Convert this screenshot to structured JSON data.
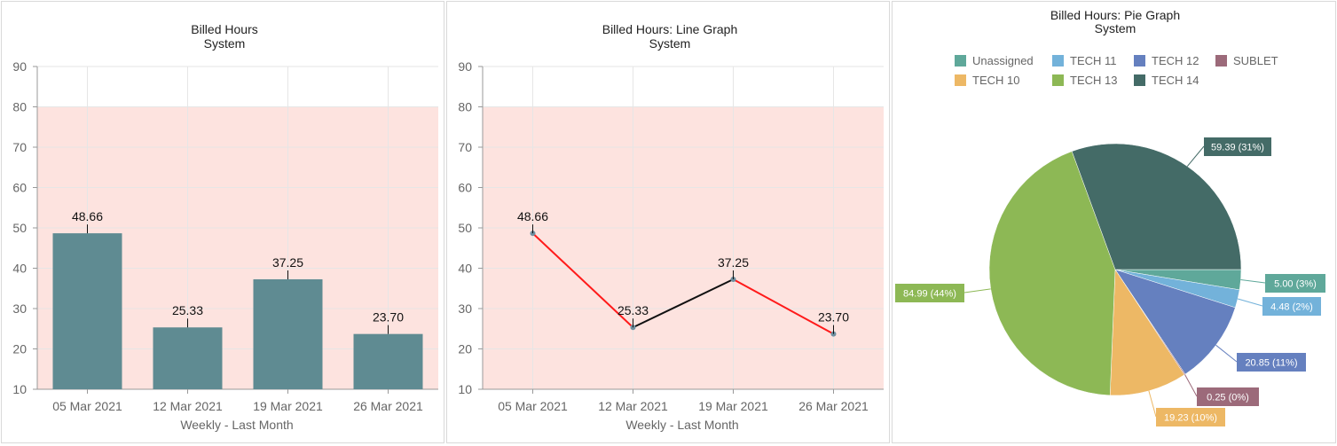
{
  "charts": [
    {
      "id": "bar",
      "type": "bar",
      "title": [
        "Billed Hours",
        "System"
      ],
      "categories": [
        "05 Mar 2021",
        "12 Mar 2021",
        "19 Mar 2021",
        "26 Mar 2021"
      ],
      "values": [
        48.66,
        25.33,
        37.25,
        23.7
      ],
      "value_labels": [
        "48.66",
        "25.33",
        "37.25",
        "23.70"
      ],
      "xlabel": "Weekly - Last Month",
      "ylim": [
        10,
        90
      ],
      "yticks": [
        10,
        20,
        30,
        40,
        50,
        60,
        70,
        80,
        90
      ],
      "highlight_band": [
        10,
        80
      ],
      "bar_color": "#5f8b92",
      "band_color": "#fde3df"
    },
    {
      "id": "line",
      "type": "line",
      "title": [
        "Billed Hours: Line Graph",
        "System"
      ],
      "categories": [
        "05 Mar 2021",
        "12 Mar 2021",
        "19 Mar 2021",
        "26 Mar 2021"
      ],
      "values": [
        48.66,
        25.33,
        37.25,
        23.7
      ],
      "value_labels": [
        "48.66",
        "25.33",
        "37.25",
        "23.70"
      ],
      "xlabel": "Weekly - Last Month",
      "ylim": [
        10,
        90
      ],
      "yticks": [
        10,
        20,
        30,
        40,
        50,
        60,
        70,
        80,
        90
      ],
      "highlight_band": [
        10,
        80
      ],
      "segment_colors": [
        "#ff1a1a",
        "#111111",
        "#ff1a1a"
      ],
      "point_color": "#6e8fa0",
      "band_color": "#fde3df"
    },
    {
      "id": "pie",
      "type": "pie",
      "title": [
        "Billed Hours: Pie Graph",
        "System"
      ],
      "legend": [
        {
          "name": "Unassigned",
          "color": "#5fa89a"
        },
        {
          "name": "TECH 11",
          "color": "#73b2da"
        },
        {
          "name": "TECH 12",
          "color": "#6580bf"
        },
        {
          "name": "SUBLET",
          "color": "#9c6a7a"
        },
        {
          "name": "TECH 10",
          "color": "#edb865"
        },
        {
          "name": "TECH 13",
          "color": "#8db855"
        },
        {
          "name": "TECH 14",
          "color": "#446b67"
        }
      ],
      "slices": [
        {
          "name": "Unassigned",
          "value": 5.0,
          "label": "5.00 (3%)",
          "color": "#5fa89a"
        },
        {
          "name": "TECH 11",
          "value": 4.48,
          "label": "4.48 (2%)",
          "color": "#73b2da"
        },
        {
          "name": "TECH 12",
          "value": 20.85,
          "label": "20.85 (11%)",
          "color": "#6580bf"
        },
        {
          "name": "SUBLET",
          "value": 0.25,
          "label": "0.25 (0%)",
          "color": "#9c6a7a"
        },
        {
          "name": "TECH 10",
          "value": 19.23,
          "label": "19.23 (10%)",
          "color": "#edb865"
        },
        {
          "name": "TECH 13",
          "value": 84.99,
          "label": "84.99 (44%)",
          "color": "#8db855"
        },
        {
          "name": "TECH 14",
          "value": 59.39,
          "label": "59.39 (31%)",
          "color": "#446b67"
        }
      ]
    }
  ]
}
